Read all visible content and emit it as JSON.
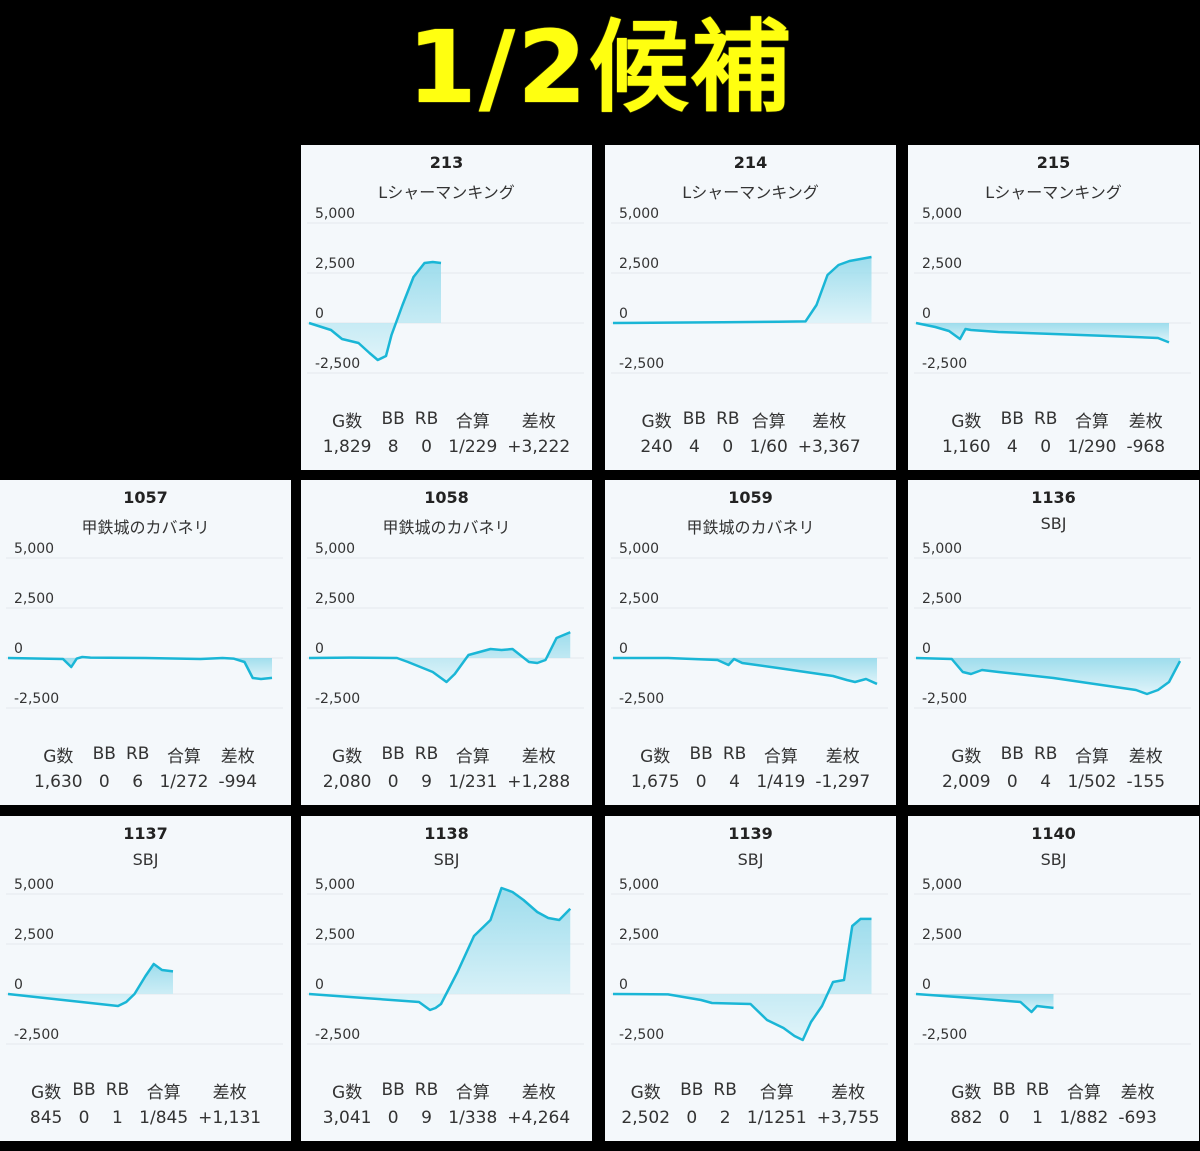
{
  "title": "1/2候補",
  "stat_headers": [
    "G数",
    "BB",
    "RB",
    "合算",
    "差枚"
  ],
  "colors": {
    "line": "#1ab6d6",
    "fill_top": "#8fd8ea",
    "fill_bottom": "#dcf3f9",
    "grid": "#e3e8ec",
    "title": "#ffff10"
  },
  "chart_data": [
    {
      "type": "area",
      "number": "213",
      "machine": "Lシャーマンキング",
      "ylim": [
        -3000,
        5500
      ],
      "yticks": [
        5000,
        2500,
        0,
        -2500
      ],
      "x": [
        0,
        0.08,
        0.12,
        0.18,
        0.22,
        0.25,
        0.28,
        0.3,
        0.34,
        0.38,
        0.42,
        0.45,
        0.48
      ],
      "values": [
        0,
        -350,
        -800,
        -1000,
        -1500,
        -1850,
        -1650,
        -600,
        900,
        2300,
        3000,
        3050,
        3000
      ],
      "stats": {
        "games": "1,829",
        "bb": "8",
        "rb": "0",
        "combined": "1/229",
        "diff": "+3,222"
      }
    },
    {
      "type": "area",
      "number": "214",
      "machine": "Lシャーマンキング",
      "ylim": [
        -3000,
        5500
      ],
      "yticks": [
        5000,
        2500,
        0,
        -2500
      ],
      "x": [
        0,
        0.2,
        0.4,
        0.6,
        0.7,
        0.74,
        0.78,
        0.82,
        0.86,
        0.9,
        0.94
      ],
      "values": [
        0,
        20,
        40,
        60,
        80,
        900,
        2400,
        2900,
        3100,
        3200,
        3300
      ],
      "stats": {
        "games": "240",
        "bb": "4",
        "rb": "0",
        "combined": "1/60",
        "diff": "+3,367"
      }
    },
    {
      "type": "area",
      "number": "215",
      "machine": "Lシャーマンキング",
      "ylim": [
        -3000,
        5500
      ],
      "yticks": [
        5000,
        2500,
        0,
        -2500
      ],
      "x": [
        0,
        0.07,
        0.12,
        0.16,
        0.18,
        0.2,
        0.3,
        0.5,
        0.7,
        0.88,
        0.92
      ],
      "values": [
        0,
        -200,
        -400,
        -800,
        -300,
        -350,
        -450,
        -550,
        -650,
        -750,
        -968
      ],
      "stats": {
        "games": "1,160",
        "bb": "4",
        "rb": "0",
        "combined": "1/290",
        "diff": "-968"
      }
    },
    {
      "type": "area",
      "number": "1057",
      "machine": "甲鉄城のカバネリ",
      "ylim": [
        -3000,
        5500
      ],
      "yticks": [
        5000,
        2500,
        0,
        -2500
      ],
      "x": [
        0,
        0.2,
        0.23,
        0.25,
        0.27,
        0.3,
        0.5,
        0.7,
        0.78,
        0.82,
        0.86,
        0.89,
        0.92,
        0.96
      ],
      "values": [
        0,
        -50,
        -450,
        -30,
        50,
        20,
        0,
        -50,
        0,
        -30,
        -200,
        -1000,
        -1050,
        -994
      ],
      "stats": {
        "games": "1,630",
        "bb": "0",
        "rb": "6",
        "combined": "1/272",
        "diff": "-994"
      }
    },
    {
      "type": "area",
      "number": "1058",
      "machine": "甲鉄城のカバネリ",
      "ylim": [
        -3000,
        5500
      ],
      "yticks": [
        5000,
        2500,
        0,
        -2500
      ],
      "x": [
        0,
        0.15,
        0.32,
        0.36,
        0.45,
        0.5,
        0.53,
        0.58,
        0.66,
        0.7,
        0.74,
        0.8,
        0.83,
        0.86,
        0.9,
        0.95
      ],
      "values": [
        0,
        20,
        0,
        -200,
        -700,
        -1200,
        -800,
        150,
        450,
        400,
        450,
        -200,
        -250,
        -100,
        1000,
        1288
      ],
      "stats": {
        "games": "2,080",
        "bb": "0",
        "rb": "9",
        "combined": "1/231",
        "diff": "+1,288"
      }
    },
    {
      "type": "area",
      "number": "1059",
      "machine": "甲鉄城のカバネリ",
      "ylim": [
        -3000,
        5500
      ],
      "yticks": [
        5000,
        2500,
        0,
        -2500
      ],
      "x": [
        0,
        0.2,
        0.38,
        0.42,
        0.44,
        0.47,
        0.6,
        0.8,
        0.85,
        0.88,
        0.92,
        0.96
      ],
      "values": [
        0,
        0,
        -100,
        -350,
        -50,
        -250,
        -500,
        -900,
        -1100,
        -1200,
        -1050,
        -1297
      ],
      "stats": {
        "games": "1,675",
        "bb": "0",
        "rb": "4",
        "combined": "1/419",
        "diff": "-1,297"
      }
    },
    {
      "type": "area",
      "number": "1136",
      "machine": "SBJ",
      "ylim": [
        -3000,
        5500
      ],
      "yticks": [
        5000,
        2500,
        0,
        -2500
      ],
      "x": [
        0,
        0.13,
        0.17,
        0.2,
        0.24,
        0.3,
        0.5,
        0.7,
        0.8,
        0.84,
        0.88,
        0.92,
        0.96
      ],
      "values": [
        0,
        -50,
        -700,
        -800,
        -600,
        -700,
        -1000,
        -1400,
        -1600,
        -1800,
        -1600,
        -1200,
        -155
      ],
      "stats": {
        "games": "2,009",
        "bb": "0",
        "rb": "4",
        "combined": "1/502",
        "diff": "-155"
      }
    },
    {
      "type": "area",
      "number": "1137",
      "machine": "SBJ",
      "ylim": [
        -3000,
        5500
      ],
      "yticks": [
        5000,
        2500,
        0,
        -2500
      ],
      "x": [
        0,
        0.2,
        0.4,
        0.43,
        0.46,
        0.5,
        0.53,
        0.56,
        0.6
      ],
      "values": [
        0,
        -300,
        -600,
        -400,
        0,
        900,
        1500,
        1200,
        1131
      ],
      "stats": {
        "games": "845",
        "bb": "0",
        "rb": "1",
        "combined": "1/845",
        "diff": "+1,131"
      }
    },
    {
      "type": "area",
      "number": "1138",
      "machine": "SBJ",
      "ylim": [
        -3000,
        5500
      ],
      "yticks": [
        5000,
        2500,
        0,
        -2500
      ],
      "x": [
        0,
        0.2,
        0.4,
        0.44,
        0.46,
        0.48,
        0.54,
        0.6,
        0.66,
        0.7,
        0.74,
        0.78,
        0.83,
        0.87,
        0.91,
        0.95
      ],
      "values": [
        0,
        -200,
        -400,
        -800,
        -700,
        -500,
        1100,
        2900,
        3700,
        5300,
        5100,
        4700,
        4100,
        3800,
        3700,
        4264
      ],
      "stats": {
        "games": "3,041",
        "bb": "0",
        "rb": "9",
        "combined": "1/338",
        "diff": "+4,264"
      }
    },
    {
      "type": "area",
      "number": "1139",
      "machine": "SBJ",
      "ylim": [
        -3000,
        5500
      ],
      "yticks": [
        5000,
        2500,
        0,
        -2500
      ],
      "x": [
        0,
        0.2,
        0.32,
        0.36,
        0.5,
        0.56,
        0.62,
        0.66,
        0.69,
        0.72,
        0.76,
        0.8,
        0.84,
        0.87,
        0.9,
        0.94
      ],
      "values": [
        0,
        -20,
        -300,
        -450,
        -500,
        -1300,
        -1700,
        -2100,
        -2300,
        -1400,
        -600,
        600,
        700,
        3400,
        3755,
        3755
      ],
      "stats": {
        "games": "2,502",
        "bb": "0",
        "rb": "2",
        "combined": "1/1251",
        "diff": "+3,755"
      }
    },
    {
      "type": "area",
      "number": "1140",
      "machine": "SBJ",
      "ylim": [
        -3000,
        5500
      ],
      "yticks": [
        5000,
        2500,
        0,
        -2500
      ],
      "x": [
        0,
        0.2,
        0.38,
        0.42,
        0.44,
        0.47,
        0.5
      ],
      "values": [
        0,
        -200,
        -400,
        -900,
        -600,
        -650,
        -693
      ],
      "stats": {
        "games": "882",
        "bb": "0",
        "rb": "1",
        "combined": "1/882",
        "diff": "-693"
      }
    }
  ]
}
